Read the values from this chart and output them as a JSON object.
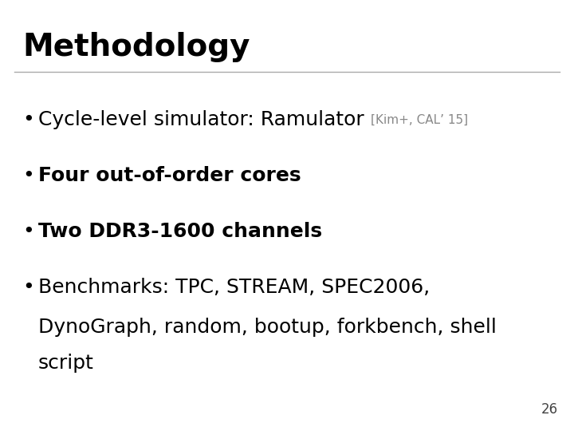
{
  "title": "Methodology",
  "title_fontsize": 28,
  "title_fontweight": "bold",
  "title_color": "#000000",
  "line_color": "#aaaaaa",
  "background_color": "#ffffff",
  "slide_number": "26",
  "slide_number_fontsize": 12,
  "slide_number_color": "#444444",
  "main_fontsize": 18,
  "ref_fontsize": 11,
  "ref_color": "#888888",
  "bullet_color": "#000000",
  "text_color": "#000000",
  "bullet1_text": "Cycle-level simulator: Ramulator ",
  "bullet1_ref": "[Kim+, CAL’ 15]",
  "bullet2_text": "Four out-of-order cores",
  "bullet3_text": "Two DDR3-1600 channels",
  "bullet4_text": "Benchmarks: TPC, STREAM, SPEC2006,",
  "cont1_text": "DynoGraph, random, bootup, forkbench, shell",
  "cont2_text": "script"
}
